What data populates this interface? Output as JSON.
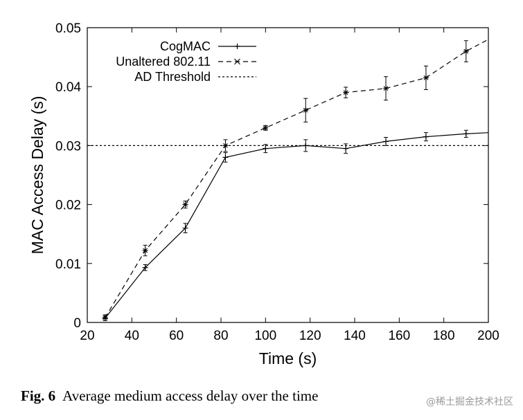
{
  "chart_data": {
    "type": "line",
    "title": "",
    "xlabel": "Time (s)",
    "ylabel": "MAC Access Delay (s)",
    "xlim": [
      20,
      200
    ],
    "ylim": [
      0,
      0.05
    ],
    "xticks": [
      "20",
      "40",
      "60",
      "80",
      "100",
      "120",
      "140",
      "160",
      "180",
      "200"
    ],
    "yticks": [
      "0",
      "0.01",
      "0.02",
      "0.03",
      "0.04",
      "0.05"
    ],
    "grid": false,
    "legend_position": "top-left",
    "series": [
      {
        "name": "CogMAC",
        "style": "solid",
        "marker": "plus",
        "x": [
          28,
          46,
          64,
          82,
          100,
          118,
          136,
          154,
          172,
          190,
          200
        ],
        "y": [
          0.0007,
          0.0093,
          0.016,
          0.028,
          0.0295,
          0.03,
          0.0295,
          0.0307,
          0.0315,
          0.032,
          0.0322
        ],
        "err": [
          0.0004,
          0.0005,
          0.0008,
          0.0008,
          0.0007,
          0.001,
          0.0008,
          0.0007,
          0.0007,
          0.0006,
          0
        ]
      },
      {
        "name": "Unaltered 802.11",
        "style": "dashed",
        "marker": "asterisk",
        "x": [
          28,
          46,
          64,
          82,
          100,
          118,
          136,
          154,
          172,
          190,
          200
        ],
        "y": [
          0.0008,
          0.0122,
          0.02,
          0.03,
          0.033,
          0.036,
          0.039,
          0.0397,
          0.0415,
          0.046,
          0.048
        ],
        "err": [
          0.0005,
          0.0009,
          0.0006,
          0.001,
          0.0004,
          0.002,
          0.0009,
          0.002,
          0.002,
          0.0018,
          0
        ]
      },
      {
        "name": "AD Threshold",
        "style": "dotted",
        "marker": "none",
        "x": [
          20,
          200
        ],
        "y": [
          0.03,
          0.03
        ]
      }
    ]
  },
  "caption": {
    "label": "Fig. 6",
    "text": "Average medium access delay over the time"
  },
  "watermark": "@稀土掘金技术社区"
}
